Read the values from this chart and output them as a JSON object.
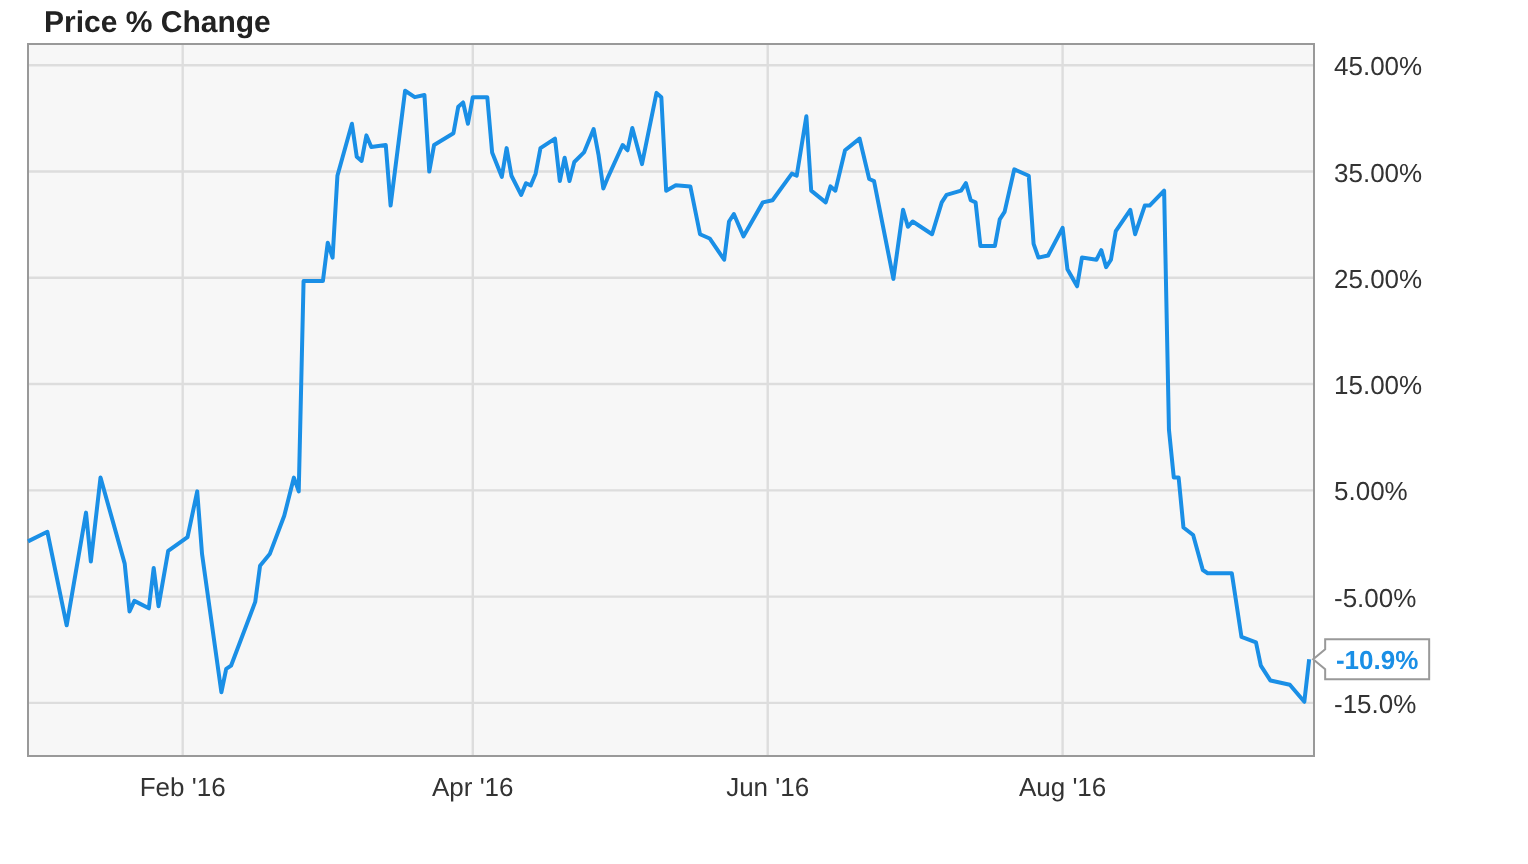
{
  "chart_data": {
    "type": "line",
    "title": "Price % Change",
    "x": [
      "2015-12-31",
      "2016-01-04",
      "2016-01-08",
      "2016-01-12",
      "2016-01-13",
      "2016-01-15",
      "2016-01-20",
      "2016-01-21",
      "2016-01-22",
      "2016-01-25",
      "2016-01-26",
      "2016-01-27",
      "2016-01-29",
      "2016-02-02",
      "2016-02-04",
      "2016-02-05",
      "2016-02-09",
      "2016-02-10",
      "2016-02-11",
      "2016-02-16",
      "2016-02-17",
      "2016-02-19",
      "2016-02-22",
      "2016-02-24",
      "2016-02-25",
      "2016-02-26",
      "2016-03-01",
      "2016-03-02",
      "2016-03-03",
      "2016-03-04",
      "2016-03-07",
      "2016-03-08",
      "2016-03-09",
      "2016-03-10",
      "2016-03-11",
      "2016-03-14",
      "2016-03-15",
      "2016-03-18",
      "2016-03-20",
      "2016-03-22",
      "2016-03-23",
      "2016-03-24",
      "2016-03-28",
      "2016-03-29",
      "2016-03-30",
      "2016-03-31",
      "2016-04-01",
      "2016-04-04",
      "2016-04-05",
      "2016-04-07",
      "2016-04-08",
      "2016-04-09",
      "2016-04-11",
      "2016-04-12",
      "2016-04-13",
      "2016-04-14",
      "2016-04-15",
      "2016-04-18",
      "2016-04-19",
      "2016-04-20",
      "2016-04-21",
      "2016-04-22",
      "2016-04-24",
      "2016-04-26",
      "2016-04-27",
      "2016-04-28",
      "2016-04-29",
      "2016-05-02",
      "2016-05-03",
      "2016-05-04",
      "2016-05-06",
      "2016-05-09",
      "2016-05-10",
      "2016-05-11",
      "2016-05-13",
      "2016-05-16",
      "2016-05-18",
      "2016-05-20",
      "2016-05-23",
      "2016-05-24",
      "2016-05-25",
      "2016-05-27",
      "2016-05-31",
      "2016-06-02",
      "2016-06-06",
      "2016-06-07",
      "2016-06-09",
      "2016-06-10",
      "2016-06-13",
      "2016-06-14",
      "2016-06-15",
      "2016-06-17",
      "2016-06-20",
      "2016-06-22",
      "2016-06-23",
      "2016-06-27",
      "2016-06-29",
      "2016-06-30",
      "2016-07-01",
      "2016-07-05",
      "2016-07-07",
      "2016-07-08",
      "2016-07-11",
      "2016-07-12",
      "2016-07-13",
      "2016-07-14",
      "2016-07-15",
      "2016-07-18",
      "2016-07-19",
      "2016-07-20",
      "2016-07-22",
      "2016-07-25",
      "2016-07-26",
      "2016-07-27",
      "2016-07-29",
      "2016-08-01",
      "2016-08-02",
      "2016-08-04",
      "2016-08-05",
      "2016-08-08",
      "2016-08-09",
      "2016-08-10",
      "2016-08-11",
      "2016-08-12",
      "2016-08-15",
      "2016-08-16",
      "2016-08-18",
      "2016-08-19",
      "2016-08-22",
      "2016-08-23",
      "2016-08-24",
      "2016-08-25",
      "2016-08-26",
      "2016-08-28",
      "2016-08-30",
      "2016-08-31",
      "2016-09-05",
      "2016-09-07",
      "2016-09-10",
      "2016-09-11",
      "2016-09-13",
      "2016-09-17",
      "2016-09-20",
      "2016-09-21"
    ],
    "series": [
      {
        "color": "#1a8fe6",
        "values": [
          0.2,
          1.1,
          -7.7,
          2.9,
          -1.7,
          6.2,
          -1.9,
          -6.4,
          -5.4,
          -6.1,
          -2.3,
          -5.9,
          -0.7,
          0.6,
          4.9,
          -1.0,
          -14.0,
          -11.8,
          -11.5,
          -5.5,
          -2.1,
          -1.0,
          2.6,
          6.2,
          4.9,
          24.7,
          24.7,
          28.3,
          26.9,
          34.6,
          39.5,
          36.4,
          36.0,
          38.4,
          37.3,
          37.5,
          31.8,
          42.6,
          42.0,
          42.2,
          35.0,
          37.5,
          38.6,
          41.1,
          41.5,
          39.5,
          42.0,
          42.0,
          36.8,
          34.5,
          37.2,
          34.6,
          32.8,
          33.9,
          33.7,
          34.8,
          37.2,
          38.1,
          34.1,
          36.3,
          34.1,
          35.9,
          36.8,
          39.0,
          36.6,
          33.4,
          34.5,
          37.5,
          37.0,
          39.1,
          35.7,
          42.4,
          42.0,
          33.2,
          33.7,
          33.6,
          29.1,
          28.7,
          26.7,
          30.3,
          31.0,
          28.9,
          32.1,
          32.3,
          34.8,
          34.6,
          40.2,
          33.2,
          32.1,
          33.6,
          33.2,
          37.0,
          38.1,
          34.3,
          34.1,
          24.9,
          31.4,
          29.8,
          30.3,
          29.1,
          32.1,
          32.8,
          33.2,
          33.9,
          32.3,
          32.1,
          28.0,
          28.0,
          30.5,
          31.2,
          35.2,
          34.6,
          28.2,
          26.9,
          27.1,
          29.7,
          25.8,
          24.2,
          26.9,
          26.7,
          27.6,
          26.0,
          26.7,
          29.4,
          31.4,
          29.1,
          31.8,
          31.8,
          33.2,
          10.7,
          6.2,
          6.2,
          1.5,
          0.8,
          -2.5,
          -2.8,
          -2.8,
          -8.8,
          -9.3,
          -11.5,
          -12.9,
          -13.3,
          -14.9,
          -10.9
        ]
      }
    ],
    "xlim": [
      "2015-12-31",
      "2016-09-22"
    ],
    "xticks": [
      {
        "value": "2016-02-01",
        "label": "Feb '16"
      },
      {
        "value": "2016-04-01",
        "label": "Apr '16"
      },
      {
        "value": "2016-06-01",
        "label": "Jun '16"
      },
      {
        "value": "2016-08-01",
        "label": "Aug '16"
      }
    ],
    "ylim": [
      -20,
      47
    ],
    "yticks": [
      {
        "value": -15,
        "label": "-15.0%"
      },
      {
        "value": -5,
        "label": "-5.00%"
      },
      {
        "value": 5,
        "label": "5.00%"
      },
      {
        "value": 15,
        "label": "15.00%"
      },
      {
        "value": 25,
        "label": "25.00%"
      },
      {
        "value": 35,
        "label": "35.00%"
      },
      {
        "value": 45,
        "label": "45.00%"
      }
    ],
    "annotations": [
      {
        "text": "-10.9%",
        "x": "2016-09-21",
        "y": -10.9
      }
    ],
    "grid": true,
    "marker": "none",
    "line_style": "solid"
  }
}
